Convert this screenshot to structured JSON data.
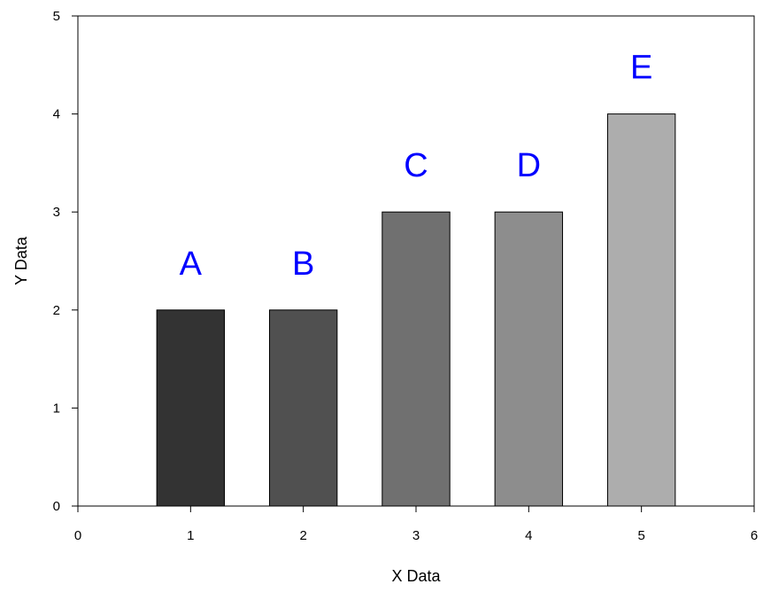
{
  "chart_data": {
    "type": "bar",
    "title": "",
    "xlabel": "X Data",
    "ylabel": "Y Data",
    "xlim": [
      0,
      6
    ],
    "ylim": [
      0,
      5
    ],
    "x_ticks": [
      "0",
      "1",
      "2",
      "3",
      "4",
      "5",
      "6"
    ],
    "y_ticks": [
      "0",
      "1",
      "2",
      "3",
      "4",
      "5"
    ],
    "grid": false,
    "label_color": "#0000ff",
    "bars": [
      {
        "x": 1,
        "value": 2,
        "label": "A",
        "color": "#333333"
      },
      {
        "x": 2,
        "value": 2,
        "label": "B",
        "color": "#505050"
      },
      {
        "x": 3,
        "value": 3,
        "label": "C",
        "color": "#707070"
      },
      {
        "x": 4,
        "value": 3,
        "label": "D",
        "color": "#8d8d8d"
      },
      {
        "x": 5,
        "value": 4,
        "label": "E",
        "color": "#adadad"
      }
    ]
  }
}
